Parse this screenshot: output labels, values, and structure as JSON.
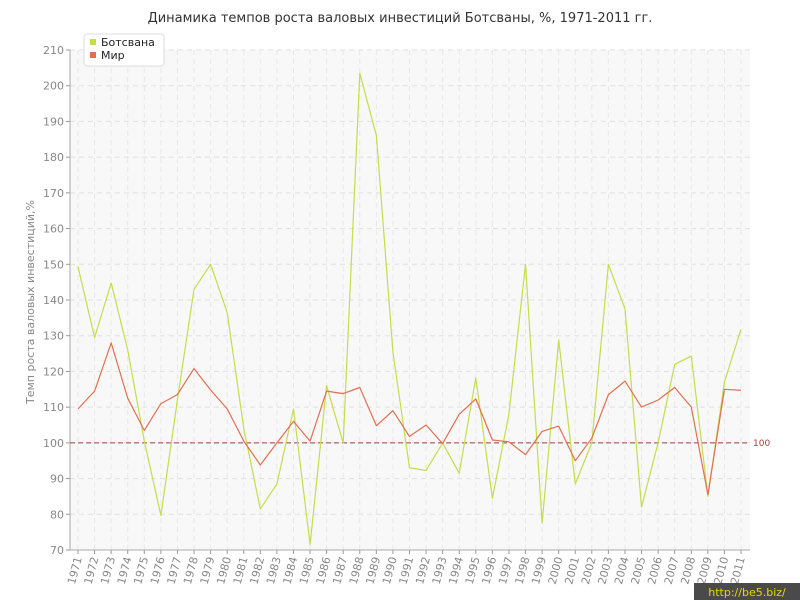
{
  "chart_data": {
    "type": "line",
    "title": "Динамика темпов роста валовых инвестиций Ботсваны, %, 1971-2011 гг.",
    "xlabel": "",
    "ylabel": "Темп роста валовых инвестиций,%",
    "ylim": [
      70,
      210
    ],
    "yticks": [
      "70",
      "80",
      "90",
      "100",
      "110",
      "120",
      "130",
      "140",
      "150",
      "160",
      "170",
      "180",
      "190",
      "200",
      "210"
    ],
    "categories": [
      "1971",
      "1972",
      "1973",
      "1974",
      "1975",
      "1976",
      "1977",
      "1978",
      "1979",
      "1980",
      "1981",
      "1982",
      "1983",
      "1984",
      "1985",
      "1986",
      "1987",
      "1988",
      "1989",
      "1990",
      "1991",
      "1992",
      "1993",
      "1994",
      "1995",
      "1996",
      "1997",
      "1998",
      "1999",
      "2000",
      "2001",
      "2002",
      "2003",
      "2004",
      "2005",
      "2006",
      "2007",
      "2008",
      "2009",
      "2010",
      "2011"
    ],
    "series": [
      {
        "name": "Ботсвана",
        "color": "#c5dd4a",
        "values": [
          149.3,
          129.5,
          144.8,
          126.0,
          100.5,
          79.7,
          112.0,
          143.0,
          150.0,
          136.5,
          104.0,
          81.5,
          88.5,
          109.5,
          71.5,
          116.0,
          100.0,
          203.5,
          186.0,
          125.5,
          93.0,
          92.3,
          100.0,
          91.5,
          118.2,
          84.5,
          108.0,
          150.0,
          77.5,
          128.8,
          88.5,
          100.0,
          150.0,
          137.5,
          82.0,
          100.0,
          122.0,
          124.3,
          85.0,
          117.0,
          131.8
        ]
      },
      {
        "name": "Мир",
        "color": "#e07050",
        "values": [
          109.5,
          114.5,
          128.0,
          112.5,
          103.5,
          111.0,
          113.5,
          120.8,
          114.8,
          109.5,
          100.5,
          93.8,
          100.0,
          106.0,
          100.5,
          114.5,
          113.8,
          115.5,
          104.8,
          109.0,
          101.8,
          105.0,
          99.8,
          108.0,
          112.3,
          100.8,
          100.3,
          96.7,
          103.2,
          104.7,
          95.0,
          101.3,
          113.5,
          117.3,
          110.0,
          112.0,
          115.5,
          110.0,
          85.5,
          115.0,
          114.7
        ]
      }
    ],
    "reference_line": {
      "value": 100,
      "label": "100",
      "color": "#a04040"
    },
    "grid": true,
    "legend": "top-left"
  },
  "watermark": "http://be5.biz/"
}
